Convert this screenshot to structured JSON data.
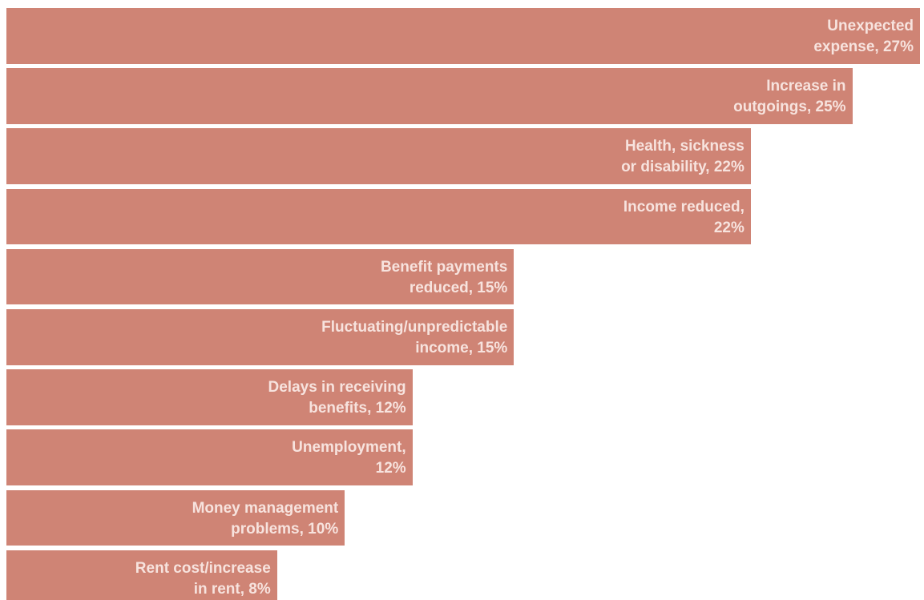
{
  "chart_data": {
    "type": "bar",
    "orientation": "horizontal",
    "categories": [
      "Unexpected expense",
      "Increase in outgoings",
      "Health, sickness or disability",
      "Income reduced",
      "Benefit payments reduced",
      "Fluctuating/unpredictable income",
      "Delays in receiving benefits",
      "Unemployment",
      "Money management problems",
      "Rent cost/increase in rent"
    ],
    "values": [
      27,
      25,
      22,
      22,
      15,
      15,
      12,
      12,
      10,
      8
    ],
    "data_labels": [
      "Unexpected\nexpense, 27%",
      "Increase in\noutgoings, 25%",
      "Health, sickness\nor disability, 22%",
      "Income reduced,\n22%",
      "Benefit payments\nreduced, 15%",
      "Fluctuating/unpredictable\nincome, 15%",
      "Delays in receiving\nbenefits, 12%",
      "Unemployment,\n12%",
      "Money management\nproblems, 10%",
      "Rent cost/increase\nin rent, 8%"
    ],
    "bar_color": "#cf8475",
    "label_color": "#f7e3de",
    "grid": false,
    "legend": "none"
  }
}
